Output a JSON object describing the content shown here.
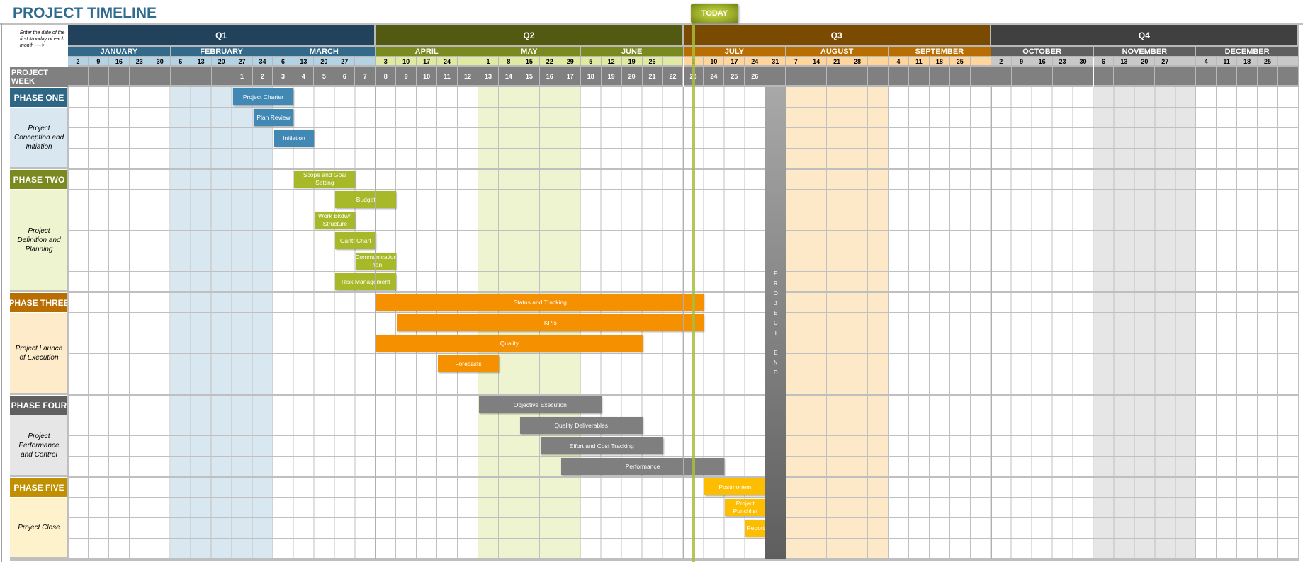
{
  "title": "PROJECT TIMELINE",
  "note": "Enter the date of the first Monday of each month ---->",
  "today_label": "TODAY",
  "today_week": 23.5,
  "project_week_label": "PROJECT WEEK",
  "project_end_label": "PROJECT END",
  "project_end_week": 27,
  "quarters": [
    {
      "label": "Q1",
      "dark": "#21425a",
      "mid": "#336a8a",
      "light": "#b3d3e5",
      "shade": "#d9e8f0"
    },
    {
      "label": "Q2",
      "dark": "#525a12",
      "mid": "#7a8a1e",
      "light": "#e0eaa0",
      "shade": "#eef4d0"
    },
    {
      "label": "Q3",
      "dark": "#7a4a00",
      "mid": "#b86e00",
      "light": "#ffd59a",
      "shade": "#fde8c8"
    },
    {
      "label": "Q4",
      "dark": "#404040",
      "mid": "#5f5f5f",
      "light": "#c8c8c8",
      "shade": "#e6e6e6"
    }
  ],
  "months": [
    {
      "name": "JANUARY",
      "weeks": [
        "2",
        "9",
        "16",
        "23",
        "30"
      ],
      "shaded": false
    },
    {
      "name": "FEBRUARY",
      "weeks": [
        "6",
        "13",
        "20",
        "27",
        "34"
      ],
      "shaded": true
    },
    {
      "name": "MARCH",
      "weeks": [
        "6",
        "13",
        "20",
        "27",
        ""
      ],
      "shaded": false
    },
    {
      "name": "APRIL",
      "weeks": [
        "3",
        "10",
        "17",
        "24",
        ""
      ],
      "shaded": false
    },
    {
      "name": "MAY",
      "weeks": [
        "1",
        "8",
        "15",
        "22",
        "29"
      ],
      "shaded": true
    },
    {
      "name": "JUNE",
      "weeks": [
        "5",
        "12",
        "19",
        "26",
        ""
      ],
      "shaded": false
    },
    {
      "name": "JULY",
      "weeks": [
        "3",
        "10",
        "17",
        "24",
        "31"
      ],
      "shaded": false
    },
    {
      "name": "AUGUST",
      "weeks": [
        "7",
        "14",
        "21",
        "28",
        ""
      ],
      "shaded": true
    },
    {
      "name": "SEPTEMBER",
      "weeks": [
        "4",
        "11",
        "18",
        "25",
        ""
      ],
      "shaded": false
    },
    {
      "name": "OCTOBER",
      "weeks": [
        "2",
        "9",
        "16",
        "23",
        "30"
      ],
      "shaded": false
    },
    {
      "name": "NOVEMBER",
      "weeks": [
        "6",
        "13",
        "20",
        "27",
        ""
      ],
      "shaded": true
    },
    {
      "name": "DECEMBER",
      "weeks": [
        "4",
        "11",
        "18",
        "25",
        ""
      ],
      "shaded": false
    }
  ],
  "project_weeks": [
    "",
    "",
    "",
    "",
    "",
    "",
    "",
    "",
    "1",
    "2",
    "3",
    "4",
    "5",
    "6",
    "7",
    "8",
    "9",
    "10",
    "11",
    "12",
    "13",
    "14",
    "15",
    "16",
    "17",
    "18",
    "19",
    "20",
    "21",
    "22",
    "23",
    "24",
    "25",
    "26",
    "",
    "",
    "",
    "",
    "",
    "",
    "",
    "",
    "",
    "",
    "",
    "",
    "",
    "",
    "",
    "",
    "",
    "",
    "",
    "",
    "",
    "",
    "",
    "",
    "",
    ""
  ],
  "phases": [
    {
      "name": "PHASE ONE",
      "description": "Project Conception and Initiation",
      "header_color": "#2e6686",
      "desc_color": "#d9e8f0",
      "bar_color": "#4189b4",
      "rows": 4,
      "tasks": [
        {
          "label": "Project Charter",
          "start_week": 1,
          "weeks": 3
        },
        {
          "label": "Plan Review",
          "start_week": 2,
          "weeks": 2
        },
        {
          "label": "Initiation",
          "start_week": 3,
          "weeks": 2
        }
      ]
    },
    {
      "name": "PHASE TWO",
      "description": "Project Definition and Planning",
      "header_color": "#7a8a1e",
      "desc_color": "#eef4d0",
      "bar_color": "#a7b828",
      "rows": 6,
      "tasks": [
        {
          "label": "Scope and Goal Setting",
          "start_week": 4,
          "weeks": 3
        },
        {
          "label": "Budget",
          "start_week": 6,
          "weeks": 3
        },
        {
          "label": "Work Bkdwn Structure",
          "start_week": 5,
          "weeks": 2
        },
        {
          "label": "Gantt Chart",
          "start_week": 6,
          "weeks": 2
        },
        {
          "label": "Communication Plan",
          "start_week": 7,
          "weeks": 2
        },
        {
          "label": "Risk Management",
          "start_week": 6,
          "weeks": 3
        }
      ]
    },
    {
      "name": "PHASE THREE",
      "description": "Project Launch of Execution",
      "header_color": "#b86e00",
      "desc_color": "#fdebc9",
      "bar_color": "#f59100",
      "rows": 5,
      "tasks": [
        {
          "label": "Status and Tracking",
          "start_week": 8,
          "weeks": 16
        },
        {
          "label": "KPIs",
          "start_week": 9,
          "weeks": 15
        },
        {
          "label": "Quality",
          "start_week": 8,
          "weeks": 13
        },
        {
          "label": "Forecasts",
          "start_week": 11,
          "weeks": 3
        }
      ]
    },
    {
      "name": "PHASE FOUR",
      "description": "Project Performance and Control",
      "header_color": "#606060",
      "desc_color": "#e6e6e6",
      "bar_color": "#7f7f7f",
      "rows": 4,
      "tasks": [
        {
          "label": "Objective Execution",
          "start_week": 13,
          "weeks": 6
        },
        {
          "label": "Quality Deliverables",
          "start_week": 15,
          "weeks": 6
        },
        {
          "label": "Effort and Cost Tracking",
          "start_week": 16,
          "weeks": 6
        },
        {
          "label": "Performance",
          "start_week": 17,
          "weeks": 8
        }
      ]
    },
    {
      "name": "PHASE FIVE",
      "description": "Project Close",
      "header_color": "#c09000",
      "desc_color": "#fdf2cc",
      "bar_color": "#fdbd00",
      "rows": 4,
      "tasks": [
        {
          "label": "Postmortem",
          "start_week": 24,
          "weeks": 3
        },
        {
          "label": "Project Punchlist",
          "start_week": 25,
          "weeks": 2
        },
        {
          "label": "Report",
          "start_week": 26,
          "weeks": 1
        }
      ]
    }
  ]
}
